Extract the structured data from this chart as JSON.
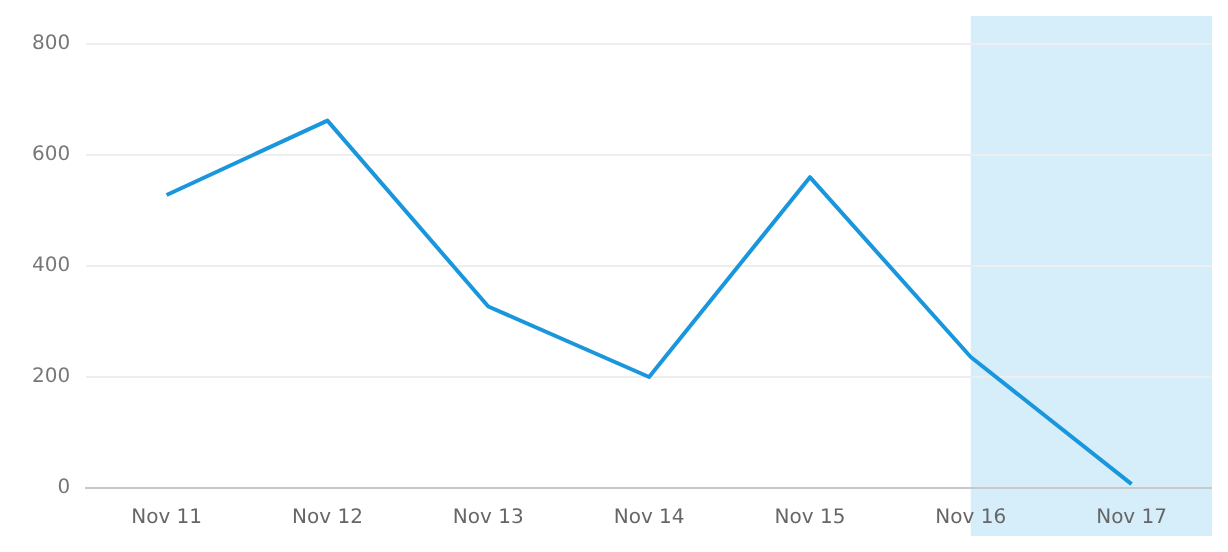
{
  "chart_data": {
    "type": "line",
    "categories": [
      "Nov 11",
      "Nov 12",
      "Nov 13",
      "Nov 14",
      "Nov 15",
      "Nov 16",
      "Nov 17"
    ],
    "series": [
      {
        "color": "#1a96dc",
        "values": [
          528,
          662,
          327,
          200,
          560,
          236,
          7
        ]
      }
    ],
    "ylim": [
      0,
      800
    ],
    "yticks": [
      0,
      200,
      400,
      600,
      800
    ],
    "grid": "y",
    "legend": false,
    "marker": "none",
    "line_style": "solid",
    "bands": [
      {
        "axis": "x",
        "from": "Nov 16",
        "to": "Nov 17",
        "color": "#d6eef9"
      }
    ]
  }
}
